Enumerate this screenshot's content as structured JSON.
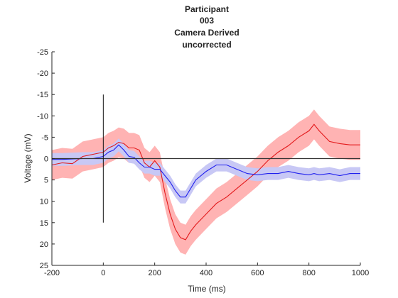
{
  "chart_data": {
    "type": "line",
    "title_lines": [
      "Participant",
      "003",
      "Camera Derived",
      "uncorrected"
    ],
    "xlabel": "Time (ms)",
    "ylabel": "Voltage (mV)",
    "xlim": [
      -200,
      1000
    ],
    "ylim": [
      -25,
      25
    ],
    "y_reversed": true,
    "x_ticks": [
      -200,
      0,
      200,
      400,
      600,
      800,
      1000
    ],
    "y_ticks": [
      -25,
      -20,
      -15,
      -10,
      -5,
      0,
      5,
      10,
      15,
      20,
      25
    ],
    "x_tick_labels": [
      "-200",
      "0",
      "200",
      "400",
      "600",
      "800",
      "1000"
    ],
    "y_tick_labels": [
      "-25",
      "-20",
      "-15",
      "-10",
      "-5",
      "0",
      "5",
      "10",
      "15",
      "20",
      "25"
    ],
    "baseline_y": 0,
    "stimulus_marker": {
      "x": 0,
      "y_from": -15,
      "y_to": 15
    },
    "x": [
      -200,
      -160,
      -120,
      -80,
      -40,
      0,
      20,
      40,
      60,
      80,
      100,
      120,
      140,
      160,
      180,
      200,
      220,
      240,
      260,
      280,
      300,
      320,
      340,
      360,
      400,
      440,
      480,
      520,
      560,
      600,
      640,
      680,
      720,
      760,
      800,
      820,
      840,
      880,
      920,
      960,
      1000
    ],
    "series": [
      {
        "name": "red",
        "color": "#e31a1c",
        "band_color": "#ffb3b3",
        "values": [
          1.5,
          1.0,
          1.2,
          -0.5,
          -1.0,
          -1.5,
          -2.5,
          -3.0,
          -3.8,
          -3.5,
          -2.5,
          -2.5,
          -2.0,
          1.0,
          2.0,
          0.5,
          2.0,
          8.0,
          13.0,
          16.5,
          18.5,
          19.0,
          17.0,
          15.5,
          13.0,
          10.5,
          9.0,
          7.0,
          5.0,
          3.0,
          0.5,
          -1.5,
          -3.0,
          -5.0,
          -6.5,
          -8.0,
          -6.5,
          -4.0,
          -3.5,
          -3.2,
          -3.2
        ],
        "band_half_width": [
          3.5,
          3.5,
          3.5,
          3.5,
          3.5,
          3.5,
          3.5,
          3.5,
          3.5,
          3.5,
          3.5,
          3.5,
          3.5,
          3.5,
          3.5,
          3.5,
          3.5,
          3.5,
          3.5,
          3.5,
          3.5,
          3.5,
          3.5,
          3.5,
          3.5,
          3.5,
          3.5,
          3.5,
          3.5,
          3.5,
          3.5,
          3.5,
          3.5,
          3.5,
          3.5,
          3.5,
          3.5,
          3.5,
          3.5,
          3.5,
          3.5
        ]
      },
      {
        "name": "blue",
        "color": "#2020ee",
        "band_color": "#c8c8f5",
        "values": [
          0.2,
          0.2,
          0.1,
          0.0,
          0.0,
          -0.5,
          -1.5,
          -2.0,
          -3.2,
          -2.0,
          -0.5,
          -0.3,
          1.0,
          2.0,
          2.0,
          2.5,
          2.5,
          4.0,
          5.5,
          7.5,
          9.0,
          9.0,
          7.0,
          5.0,
          3.0,
          1.5,
          1.5,
          2.5,
          3.5,
          3.8,
          3.5,
          3.5,
          3.0,
          3.5,
          3.8,
          3.5,
          3.8,
          3.5,
          4.0,
          3.5,
          3.5
        ],
        "band_half_width": [
          1.5,
          1.5,
          1.5,
          1.5,
          1.5,
          1.5,
          1.5,
          1.5,
          1.5,
          1.5,
          1.5,
          1.5,
          1.5,
          1.5,
          1.5,
          1.5,
          1.5,
          1.5,
          1.5,
          1.5,
          1.5,
          1.5,
          1.5,
          1.5,
          1.5,
          1.5,
          1.5,
          1.5,
          1.5,
          1.5,
          1.5,
          1.5,
          1.5,
          1.5,
          1.5,
          1.5,
          1.5,
          1.5,
          1.5,
          1.5,
          1.5
        ]
      }
    ]
  }
}
